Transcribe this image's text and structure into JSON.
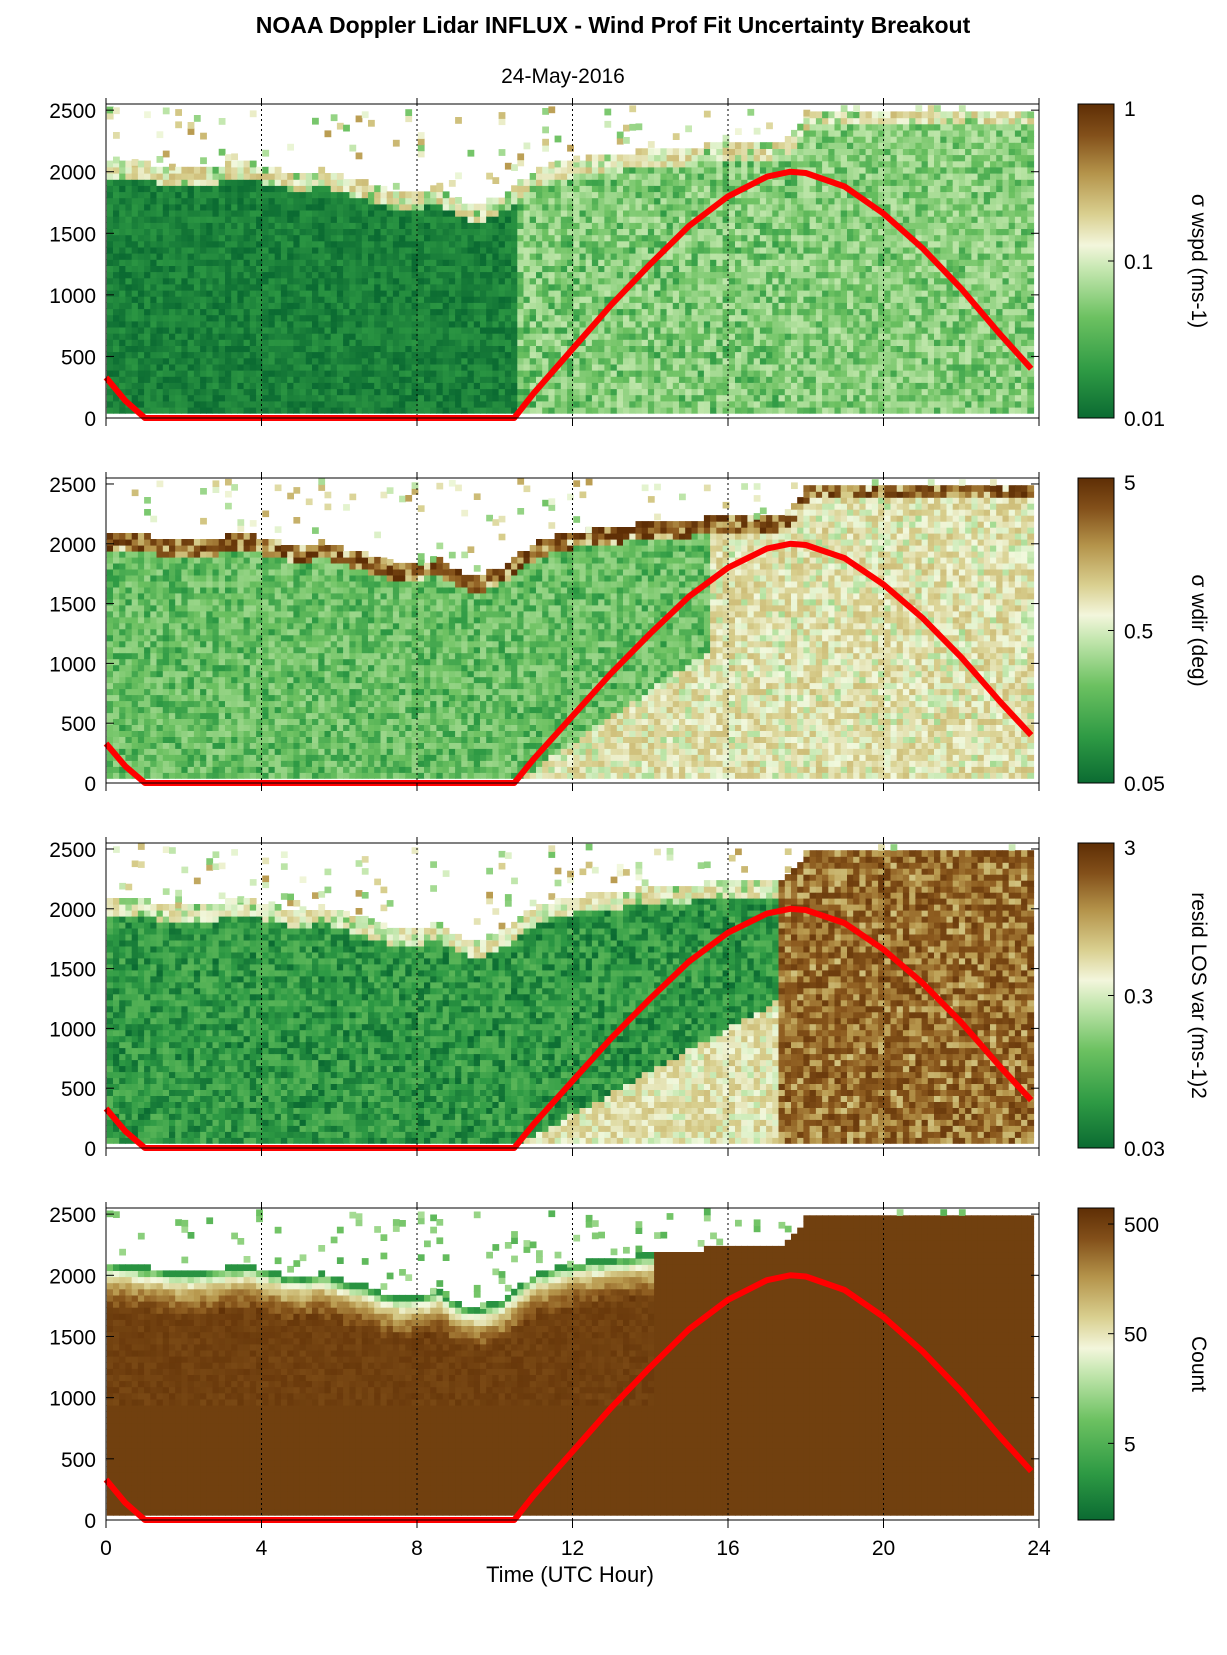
{
  "title": "NOAA Doppler Lidar INFLUX - Wind Prof Fit Uncertainty Breakout",
  "date": "24-May-2016",
  "xlabel": "Time (UTC Hour)",
  "colors": {
    "colormap": [
      "#0b6b32",
      "#2e9a44",
      "#6cc161",
      "#b7e3a3",
      "#f2f8dd",
      "#d8cf8e",
      "#b99a4f",
      "#8c5a1e",
      "#5e2e05"
    ],
    "sun_curve": "#ff0000",
    "gridline": "#000000"
  },
  "chart_data": [
    {
      "type": "heatmap",
      "panel": "wspd_uncertainty",
      "colorbar_label": "σ wspd (ms-1)",
      "colorbar_ticks": [
        "1",
        "0.1",
        "0.01"
      ],
      "colorbar_range": [
        0.01,
        1
      ],
      "colorbar_scale": "log",
      "xlim": [
        0,
        24
      ],
      "ylim": [
        0,
        2550
      ],
      "xticks": [
        0,
        4,
        8,
        12,
        16,
        20,
        24
      ],
      "yticks": [
        "2500",
        "2000",
        "1500",
        "1000",
        "500",
        "0"
      ],
      "grid": "vertical dotted every 4 h",
      "description_values": {
        "day_hours": [
          10.5,
          24
        ],
        "night_level": 0.012,
        "day_level": 0.03,
        "edge_level": 0.08
      }
    },
    {
      "type": "heatmap",
      "panel": "wdir_uncertainty",
      "colorbar_label": "σ wdir (deg)",
      "colorbar_ticks": [
        "5",
        "0.5",
        "0.05"
      ],
      "colorbar_range": [
        0.05,
        5
      ],
      "colorbar_scale": "log",
      "xlim": [
        0,
        24
      ],
      "ylim": [
        0,
        2550
      ],
      "xticks": [
        0,
        4,
        8,
        12,
        16,
        20,
        24
      ],
      "yticks": [
        "2500",
        "2000",
        "1500",
        "1000",
        "500",
        "0"
      ],
      "grid": "vertical dotted every 4 h",
      "description_values": {
        "night_level": 0.12,
        "day_level": 0.6,
        "edge_level": 2.5
      }
    },
    {
      "type": "heatmap",
      "panel": "residual_los_variance",
      "colorbar_label": "resid LOS var (ms-1)2",
      "colorbar_ticks": [
        "3",
        "0.3",
        "0.03"
      ],
      "colorbar_range": [
        0.03,
        3
      ],
      "colorbar_scale": "log",
      "xlim": [
        0,
        24
      ],
      "ylim": [
        0,
        2550
      ],
      "xticks": [
        0,
        4,
        8,
        12,
        16,
        20,
        24
      ],
      "yticks": [
        "2500",
        "2000",
        "1500",
        "1000",
        "500",
        "0"
      ],
      "grid": "vertical dotted every 4 h",
      "description_values": {
        "night_level": 0.05,
        "day_level": 1.2,
        "edge_level": 0.2
      }
    },
    {
      "type": "heatmap",
      "panel": "count",
      "colorbar_label": "Count",
      "colorbar_ticks": [
        "500",
        "50",
        "5"
      ],
      "colorbar_range": [
        1,
        700
      ],
      "colorbar_scale": "log",
      "xlim": [
        0,
        24
      ],
      "ylim": [
        0,
        2550
      ],
      "xticks": [
        0,
        4,
        8,
        12,
        16,
        20,
        24
      ],
      "xtick_labels": [
        "0",
        "4",
        "8",
        "12",
        "16",
        "20",
        "24"
      ],
      "yticks": [
        "2500",
        "2000",
        "1500",
        "1000",
        "500",
        "0"
      ],
      "grid": "vertical dotted every 4 h",
      "description_values": {
        "interior_level": 500,
        "edge_level": 8
      }
    }
  ],
  "data_top": {
    "hours": [
      0,
      0.5,
      1,
      1.5,
      2,
      2.5,
      3,
      3.5,
      4,
      4.5,
      5,
      5.5,
      6,
      6.5,
      7,
      7.5,
      8,
      8.5,
      9,
      9.5,
      10,
      10.5,
      11,
      11.5,
      12,
      12.5,
      13,
      13.5,
      14,
      14.5,
      15,
      15.5,
      16,
      16.5,
      17,
      17.5,
      18,
      18.5,
      19,
      19.5,
      20,
      20.5,
      21,
      21.5,
      22,
      22.5,
      23,
      23.5,
      23.8
    ],
    "top_m": [
      2080,
      2060,
      2040,
      2020,
      2000,
      2020,
      2040,
      2060,
      2030,
      1980,
      1970,
      2000,
      1940,
      1900,
      1840,
      1800,
      1820,
      1860,
      1740,
      1720,
      1760,
      1880,
      2000,
      2040,
      2080,
      2100,
      2120,
      2140,
      2150,
      2160,
      2180,
      2200,
      2200,
      2210,
      2200,
      2260,
      2480,
      2490,
      2490,
      2490,
      2490,
      2490,
      2490,
      2490,
      2490,
      2490,
      2490,
      2490,
      2490
    ]
  },
  "sun_elevation_curve": {
    "hours": [
      0,
      0.5,
      1,
      10.5,
      11,
      12,
      13,
      14,
      15,
      16,
      17,
      17.6,
      18,
      19,
      20,
      21,
      22,
      23,
      23.8
    ],
    "values_m": [
      330,
      140,
      0,
      0,
      200,
      560,
      920,
      1250,
      1560,
      1800,
      1960,
      2000,
      1990,
      1880,
      1660,
      1380,
      1050,
      680,
      400
    ]
  }
}
